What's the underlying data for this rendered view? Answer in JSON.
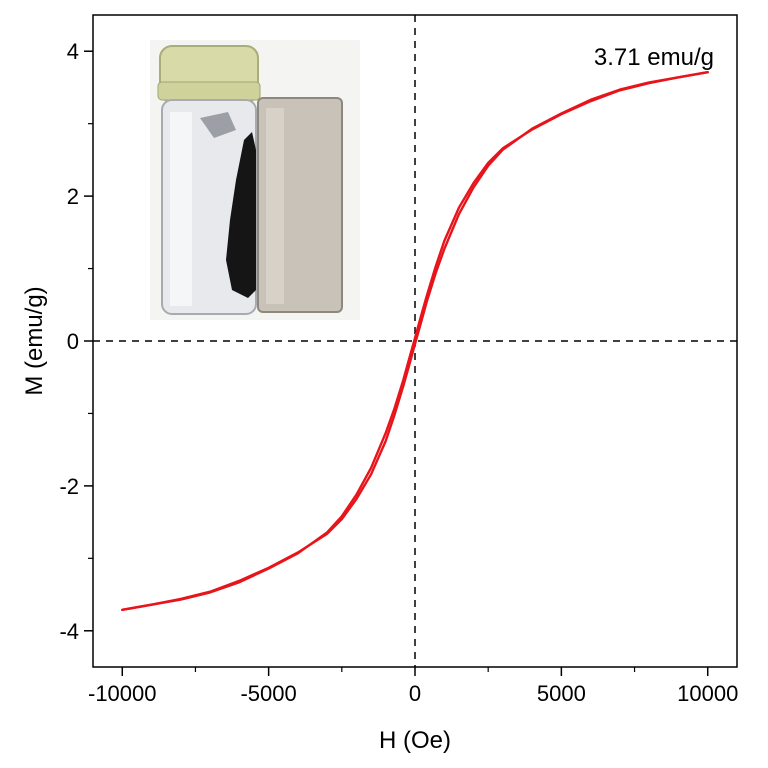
{
  "chart_data": {
    "type": "line",
    "title": "",
    "xlabel": "H (Oe)",
    "ylabel": "M (emu/g)",
    "xlim": [
      -11000,
      11000
    ],
    "ylim": [
      -4.5,
      4.5
    ],
    "x_ticks": [
      -10000,
      -5000,
      0,
      5000,
      10000
    ],
    "x_tick_labels": [
      "-10000",
      "-5000",
      "0",
      "5000",
      "10000"
    ],
    "y_ticks": [
      -4,
      -2,
      0,
      2,
      4
    ],
    "y_tick_labels": [
      "-4",
      "-2",
      "0",
      "2",
      "4"
    ],
    "grid": false,
    "reference_lines": {
      "x0_dashed": true,
      "y0_dashed": true
    },
    "annotation": "3.71 emu/g",
    "inset_image": "photo of a glass vial containing black magnetic powder attracted to a rectangular magnet",
    "colors": {
      "series": "#e8141b",
      "axes": "#000000"
    },
    "series": [
      {
        "x": [
          -10000,
          -9000,
          -8000,
          -7000,
          -6000,
          -5000,
          -4000,
          -3000,
          -2500,
          -2000,
          -1500,
          -1000,
          -700,
          -400,
          -200,
          0,
          200,
          400,
          700,
          1000,
          1500,
          2000,
          2500,
          3000,
          4000,
          5000,
          6000,
          7000,
          8000,
          9000,
          10000
        ],
        "y": [
          -3.71,
          -3.64,
          -3.56,
          -3.46,
          -3.31,
          -3.13,
          -2.92,
          -2.66,
          -2.46,
          -2.18,
          -1.84,
          -1.38,
          -1.02,
          -0.62,
          -0.34,
          -0.04,
          0.25,
          0.54,
          0.93,
          1.27,
          1.75,
          2.12,
          2.42,
          2.64,
          2.93,
          3.14,
          3.33,
          3.47,
          3.57,
          3.64,
          3.71
        ]
      },
      {
        "x": [
          10000,
          9000,
          8000,
          7000,
          6000,
          5000,
          4000,
          3000,
          2500,
          2000,
          1500,
          1000,
          700,
          400,
          200,
          0,
          -200,
          -400,
          -700,
          -1000,
          -1500,
          -2000,
          -2500,
          -3000,
          -4000,
          -5000,
          -6000,
          -7000,
          -8000,
          -9000,
          -10000
        ],
        "y": [
          3.71,
          3.64,
          3.56,
          3.46,
          3.31,
          3.13,
          2.92,
          2.66,
          2.46,
          2.18,
          1.84,
          1.38,
          1.02,
          0.62,
          0.34,
          0.04,
          -0.25,
          -0.54,
          -0.93,
          -1.27,
          -1.75,
          -2.12,
          -2.42,
          -2.64,
          -2.93,
          -3.14,
          -3.33,
          -3.47,
          -3.57,
          -3.64,
          -3.71
        ]
      }
    ]
  }
}
